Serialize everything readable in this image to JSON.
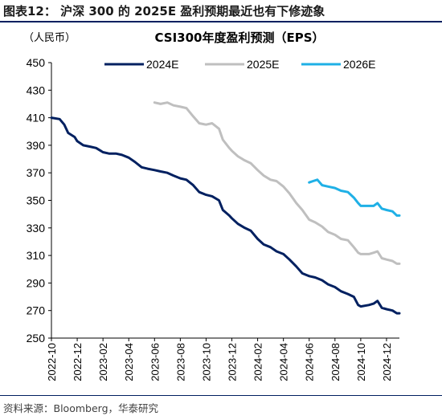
{
  "figure_title": "图表12： 沪深 300 的 2025E 盈利预期最近也有下修迹象",
  "source_note": "资料来源：Bloomberg，华泰研究",
  "chart_data": {
    "type": "line",
    "title": "CSI300年度盈利预测（EPS）",
    "unit": "（人民币）",
    "ylim": [
      250,
      450
    ],
    "yticks": [
      250,
      270,
      290,
      310,
      330,
      350,
      370,
      390,
      410,
      430,
      450
    ],
    "xlim": [
      "2022-10",
      "2025-01"
    ],
    "xticks": [
      "2022-10",
      "2022-12",
      "2023-02",
      "2023-04",
      "2023-06",
      "2023-08",
      "2023-10",
      "2023-12",
      "2024-02",
      "2024-04",
      "2024-06",
      "2024-08",
      "2024-10",
      "2024-12"
    ],
    "legend_position": "top",
    "grid": false,
    "series": [
      {
        "name": "2024E",
        "color": "#002060",
        "points": [
          [
            "2022-10",
            410
          ],
          [
            "2022-10-20",
            409
          ],
          [
            "2022-11",
            405
          ],
          [
            "2022-11-10",
            399
          ],
          [
            "2022-11-25",
            396
          ],
          [
            "2022-12",
            393
          ],
          [
            "2022-12-15",
            390
          ],
          [
            "2023-01",
            389
          ],
          [
            "2023-01-15",
            388
          ],
          [
            "2023-02",
            385
          ],
          [
            "2023-02-15",
            384
          ],
          [
            "2023-03",
            384
          ],
          [
            "2023-03-15",
            383
          ],
          [
            "2023-04",
            381
          ],
          [
            "2023-04-15",
            378
          ],
          [
            "2023-05",
            374
          ],
          [
            "2023-05-15",
            373
          ],
          [
            "2023-06",
            372
          ],
          [
            "2023-06-15",
            371
          ],
          [
            "2023-07",
            370
          ],
          [
            "2023-07-15",
            368
          ],
          [
            "2023-08",
            366
          ],
          [
            "2023-08-15",
            365
          ],
          [
            "2023-09",
            361
          ],
          [
            "2023-09-15",
            356
          ],
          [
            "2023-10",
            354
          ],
          [
            "2023-10-15",
            353
          ],
          [
            "2023-11",
            350
          ],
          [
            "2023-11-10",
            343
          ],
          [
            "2023-11-25",
            339
          ],
          [
            "2023-12",
            337
          ],
          [
            "2023-12-15",
            333
          ],
          [
            "2024-01",
            330
          ],
          [
            "2024-01-15",
            328
          ],
          [
            "2024-02",
            322
          ],
          [
            "2024-02-15",
            318
          ],
          [
            "2024-03",
            316
          ],
          [
            "2024-03-15",
            313
          ],
          [
            "2024-04",
            311
          ],
          [
            "2024-04-15",
            307
          ],
          [
            "2024-05",
            302
          ],
          [
            "2024-05-15",
            297
          ],
          [
            "2024-06",
            295
          ],
          [
            "2024-06-15",
            294
          ],
          [
            "2024-07",
            292
          ],
          [
            "2024-07-15",
            289
          ],
          [
            "2024-08",
            287
          ],
          [
            "2024-08-15",
            284
          ],
          [
            "2024-09",
            282
          ],
          [
            "2024-09-15",
            280
          ],
          [
            "2024-09-25",
            274
          ],
          [
            "2024-10",
            273
          ],
          [
            "2024-10-20",
            274
          ],
          [
            "2024-11",
            275
          ],
          [
            "2024-11-10",
            277
          ],
          [
            "2024-11-20",
            272
          ],
          [
            "2024-12",
            271
          ],
          [
            "2024-12-15",
            270
          ],
          [
            "2024-12-25",
            268
          ],
          [
            "2025-01",
            268
          ]
        ]
      },
      {
        "name": "2025E",
        "color": "#BFBFBF",
        "points": [
          [
            "2023-06",
            421
          ],
          [
            "2023-06-15",
            420
          ],
          [
            "2023-07",
            421
          ],
          [
            "2023-07-15",
            419
          ],
          [
            "2023-08",
            418
          ],
          [
            "2023-08-15",
            417
          ],
          [
            "2023-09",
            411
          ],
          [
            "2023-09-15",
            406
          ],
          [
            "2023-10",
            405
          ],
          [
            "2023-10-15",
            406
          ],
          [
            "2023-11",
            402
          ],
          [
            "2023-11-10",
            394
          ],
          [
            "2023-11-25",
            388
          ],
          [
            "2023-12",
            386
          ],
          [
            "2023-12-15",
            382
          ],
          [
            "2024-01",
            379
          ],
          [
            "2024-01-15",
            377
          ],
          [
            "2024-02",
            372
          ],
          [
            "2024-02-15",
            368
          ],
          [
            "2024-03",
            365
          ],
          [
            "2024-03-15",
            364
          ],
          [
            "2024-04",
            360
          ],
          [
            "2024-04-15",
            355
          ],
          [
            "2024-05",
            348
          ],
          [
            "2024-05-15",
            343
          ],
          [
            "2024-06",
            336
          ],
          [
            "2024-06-15",
            334
          ],
          [
            "2024-07",
            331
          ],
          [
            "2024-07-15",
            327
          ],
          [
            "2024-08",
            325
          ],
          [
            "2024-08-15",
            322
          ],
          [
            "2024-09",
            321
          ],
          [
            "2024-09-15",
            316
          ],
          [
            "2024-09-25",
            312
          ],
          [
            "2024-10",
            311
          ],
          [
            "2024-10-20",
            311
          ],
          [
            "2024-11",
            312
          ],
          [
            "2024-11-10",
            313
          ],
          [
            "2024-11-20",
            308
          ],
          [
            "2024-12",
            307
          ],
          [
            "2024-12-15",
            306
          ],
          [
            "2024-12-25",
            304
          ],
          [
            "2025-01",
            304
          ]
        ]
      },
      {
        "name": "2026E",
        "color": "#1FB0E6",
        "points": [
          [
            "2024-06",
            363
          ],
          [
            "2024-06-10",
            364
          ],
          [
            "2024-06-20",
            365
          ],
          [
            "2024-07",
            361
          ],
          [
            "2024-07-15",
            360
          ],
          [
            "2024-08",
            359
          ],
          [
            "2024-08-15",
            357
          ],
          [
            "2024-09",
            356
          ],
          [
            "2024-09-15",
            352
          ],
          [
            "2024-09-25",
            348
          ],
          [
            "2024-10",
            346
          ],
          [
            "2024-10-20",
            346
          ],
          [
            "2024-11",
            346
          ],
          [
            "2024-11-10",
            348
          ],
          [
            "2024-11-20",
            344
          ],
          [
            "2024-12",
            343
          ],
          [
            "2024-12-15",
            342
          ],
          [
            "2024-12-25",
            339
          ],
          [
            "2025-01",
            339
          ]
        ]
      }
    ]
  }
}
